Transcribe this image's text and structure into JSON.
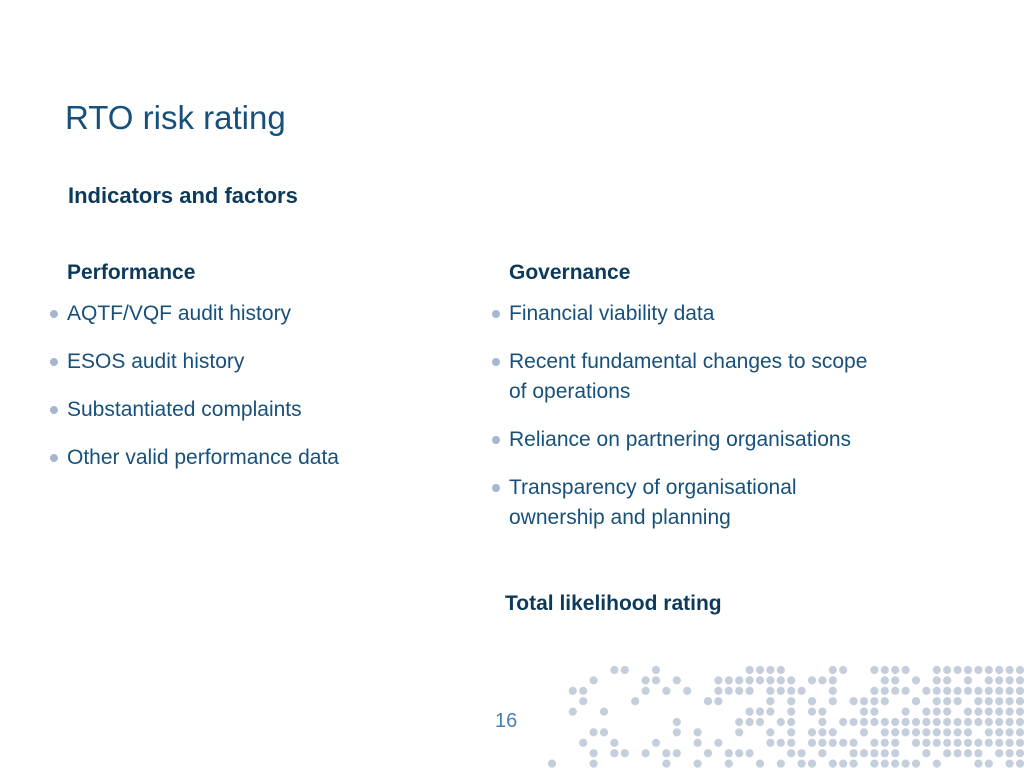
{
  "slide": {
    "title": "RTO risk rating",
    "subtitle": "Indicators and factors",
    "columns": [
      {
        "heading": "Performance",
        "items": [
          "AQTF/VQF audit history",
          "ESOS audit history",
          "Substantiated complaints",
          "Other valid performance data"
        ]
      },
      {
        "heading": "Governance",
        "items": [
          "Financial viability data",
          "Recent fundamental changes to scope of operations",
          "Reliance on partnering organisations",
          "Transparency of organisational ownership and planning"
        ]
      }
    ],
    "total_label": "Total likelihood rating",
    "page_number": "16"
  },
  "colors": {
    "title": "#17507a",
    "heading": "#0e3a5a",
    "bullet": "#a6b8d0",
    "dot_pattern": "#c5cfdc"
  }
}
